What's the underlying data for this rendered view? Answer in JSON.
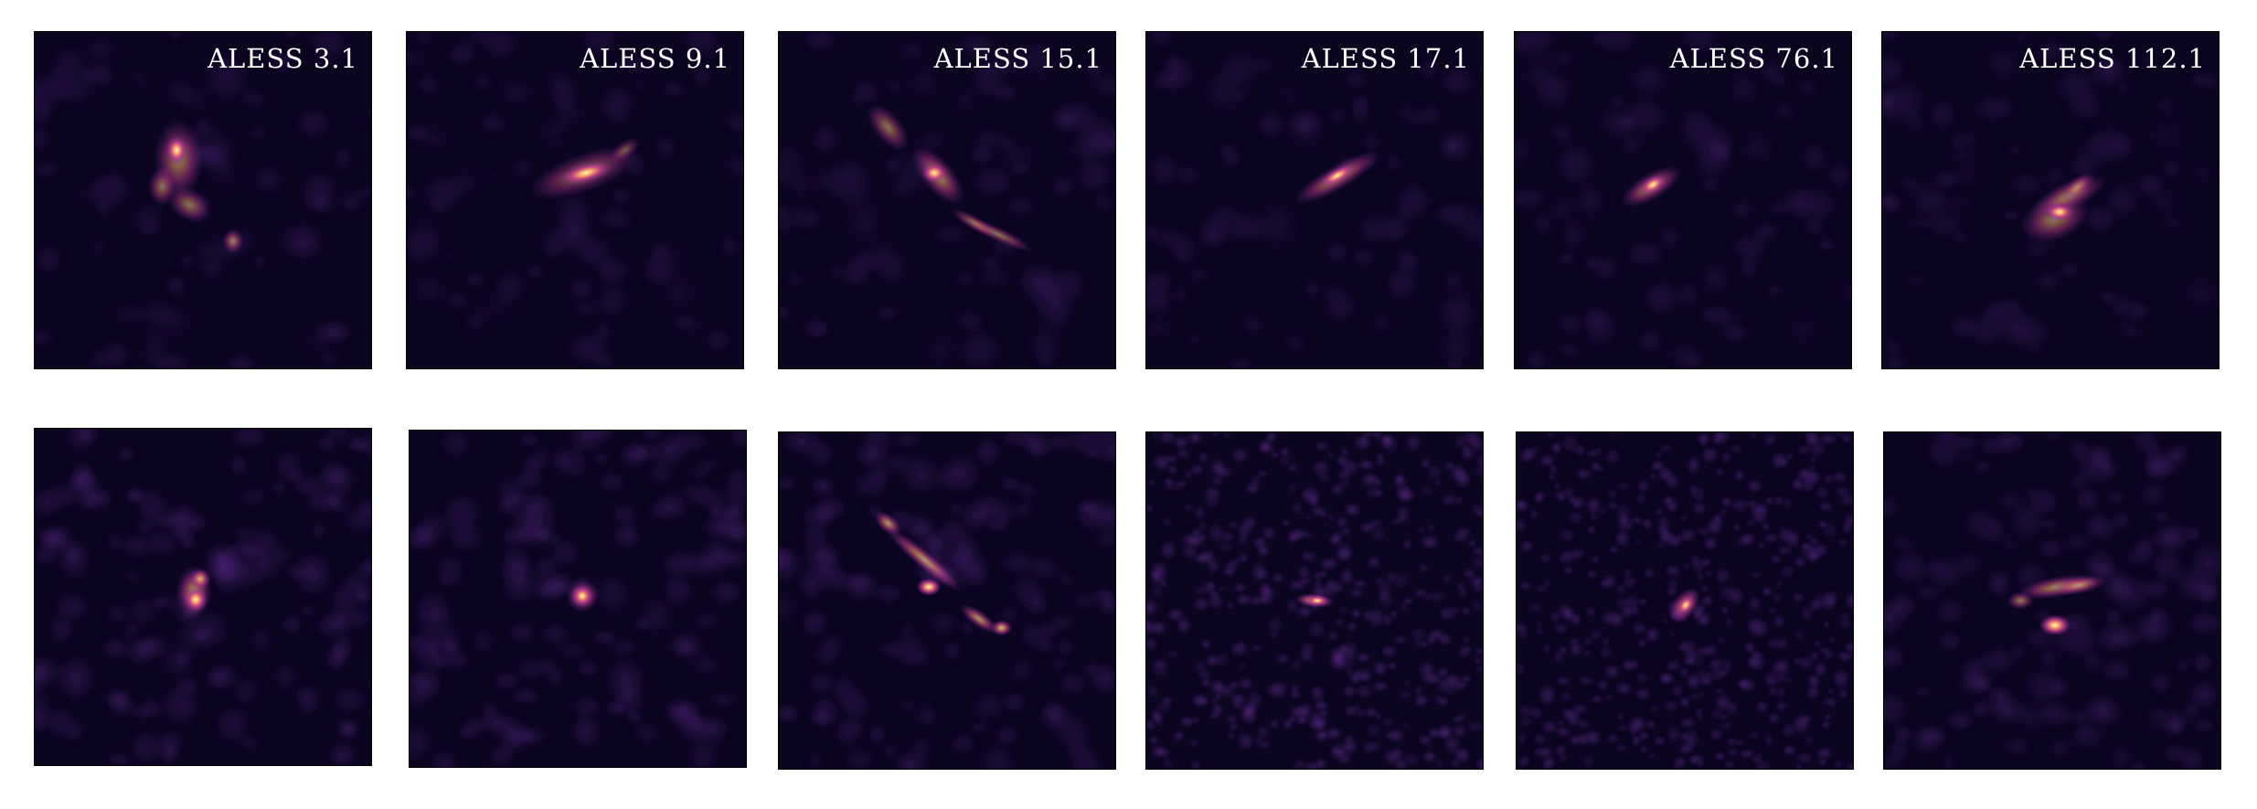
{
  "colors": {
    "background": "#0b0520",
    "noise_light": "#2a1250",
    "noise_bright": "#5e2a8c",
    "emission_mid": "#c43c8c",
    "emission_hot": "#ffb06a",
    "emission_core": "#fff8d0",
    "label": "#ffffff"
  },
  "rows": [
    {
      "name": "top-row",
      "panels": [
        {
          "label": "ALESS 3.1",
          "noise": "low"
        },
        {
          "label": "ALESS 9.1",
          "noise": "low"
        },
        {
          "label": "ALESS 15.1",
          "noise": "low"
        },
        {
          "label": "ALESS 17.1",
          "noise": "low"
        },
        {
          "label": "ALESS 76.1",
          "noise": "low"
        },
        {
          "label": "ALESS 112.1",
          "noise": "low"
        }
      ]
    },
    {
      "name": "bottom-row",
      "panels": [
        {
          "label": "",
          "noise": "medium"
        },
        {
          "label": "",
          "noise": "medium"
        },
        {
          "label": "",
          "noise": "medium"
        },
        {
          "label": "",
          "noise": "high"
        },
        {
          "label": "",
          "noise": "high"
        },
        {
          "label": "",
          "noise": "medium"
        }
      ]
    }
  ]
}
